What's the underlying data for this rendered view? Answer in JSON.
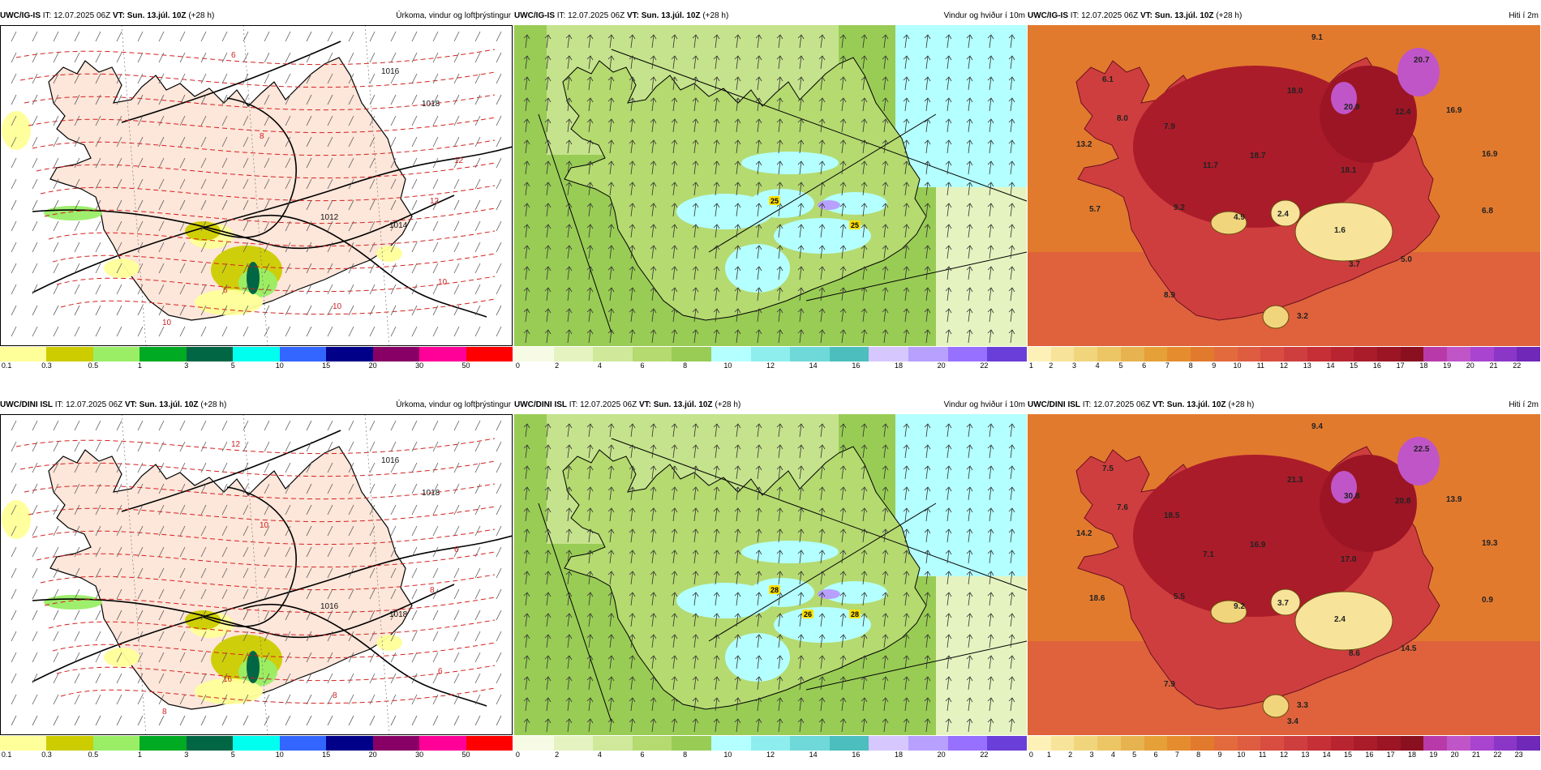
{
  "colors": {
    "land_precip": "#fde6da",
    "precip_colors": [
      "#ffff99",
      "#cccc00",
      "#99ee66",
      "#00aa22",
      "#006644",
      "#00ffee",
      "#3366ff",
      "#000088",
      "#880066",
      "#ff0099",
      "#ff0000"
    ],
    "wind_colors": [
      "#f7fbe6",
      "#e5f3c0",
      "#cfe89a",
      "#b5da70",
      "#99cc55",
      "#b4ffff",
      "#8eeeee",
      "#6fd8d8",
      "#4cbebe",
      "#d6c8ff",
      "#b8a0ff",
      "#9870ff",
      "#6a3ed8"
    ],
    "temp_colors": [
      "#fdf1b8",
      "#f7e49a",
      "#f1d57d",
      "#ecc564",
      "#e7b350",
      "#e6a038",
      "#e58d2e",
      "#e27a2e",
      "#e36a3c",
      "#de5c40",
      "#d84d40",
      "#cf3e3e",
      "#c52f35",
      "#b82530",
      "#aa1c2a",
      "#9c1525",
      "#8a1020",
      "#b83aa8",
      "#c055c8",
      "#a844d0",
      "#8c36c8",
      "#7028b8"
    ]
  },
  "legends": {
    "precip_ticks": [
      "0.1",
      "0.3",
      "0.5",
      "1",
      "3",
      "5",
      "10",
      "15",
      "20",
      "30",
      "50"
    ],
    "wind_ticks": [
      "0",
      "2",
      "4",
      "6",
      "8",
      "10",
      "12",
      "14",
      "16",
      "18",
      "20",
      "22"
    ],
    "temp_ticks_top": [
      "1",
      "2",
      "3",
      "4",
      "5",
      "6",
      "7",
      "8",
      "9",
      "10",
      "11",
      "12",
      "13",
      "14",
      "15",
      "16",
      "17",
      "18",
      "19",
      "20",
      "21",
      "22"
    ],
    "temp_ticks_bottom": [
      "0",
      "1",
      "2",
      "3",
      "4",
      "5",
      "6",
      "7",
      "8",
      "9",
      "10",
      "11",
      "12",
      "13",
      "14",
      "15",
      "16",
      "17",
      "18",
      "19",
      "20",
      "21",
      "22",
      "23"
    ]
  },
  "panels": [
    {
      "model": "UWC/IG-IS",
      "it_label": "IT:",
      "it": "12.07.2025 06Z",
      "vt_label": "VT: Sun. 13.júl. 10Z",
      "lead": "(+28 h)",
      "title": "Úrkoma, vindur og loftþrýstingur",
      "kind": "precip",
      "isobar_labels": [
        "1012",
        "1014",
        "1016",
        "1018",
        "12",
        "10",
        "8",
        "6",
        "10",
        "12",
        "6",
        "10"
      ]
    },
    {
      "model": "UWC/IG-IS",
      "it_label": "IT:",
      "it": "12.07.2025 06Z",
      "vt_label": "VT: Sun. 13.júl. 10Z",
      "lead": "(+28 h)",
      "title": "Vindur og hviður í 10m",
      "kind": "wind",
      "gust_markers": [
        "25",
        "25"
      ]
    },
    {
      "model": "UWC/IG-IS",
      "it_label": "IT:",
      "it": "12.07.2025 06Z",
      "vt_label": "VT: Sun. 13.júl. 10Z",
      "lead": "(+28 h)",
      "title": "Hiti í 2m",
      "kind": "temp",
      "values": [
        "9.1",
        "6.1",
        "20.7",
        "8.0",
        "7.9",
        "18.0",
        "20.9",
        "12.4",
        "16.9",
        "13.2",
        "18.7",
        "16.9",
        "11.7",
        "18.1",
        "5.7",
        "9.2",
        "4.9",
        "2.4",
        "1.6",
        "6.8",
        "8.9",
        "3.7",
        "5.0",
        "3.2"
      ]
    },
    {
      "model": "UWC/DINI ISL",
      "it_label": "IT:",
      "it": "12.07.2025 06Z",
      "vt_label": "VT: Sun. 13.júl. 10Z",
      "lead": "(+28 h)",
      "title": "Úrkoma, vindur og loftþrýstingur",
      "kind": "precip",
      "isobar_labels": [
        "1016",
        "1018",
        "1016",
        "1018",
        "8",
        "6",
        "10",
        "12",
        "8",
        "6",
        "16",
        "8"
      ]
    },
    {
      "model": "UWC/DINI ISL",
      "it_label": "IT:",
      "it": "12.07.2025 06Z",
      "vt_label": "VT: Sun. 13.júl. 10Z",
      "lead": "(+28 h)",
      "title": "Vindur og hviður í 10m",
      "kind": "wind",
      "gust_markers": [
        "28",
        "28",
        "26"
      ]
    },
    {
      "model": "UWC/DINI ISL",
      "it_label": "IT:",
      "it": "12.07.2025 06Z",
      "vt_label": "VT: Sun. 13.júl. 10Z",
      "lead": "(+28 h)",
      "title": "Hiti í 2m",
      "kind": "temp",
      "values": [
        "9.4",
        "7.5",
        "22.5",
        "7.6",
        "18.5",
        "21.3",
        "30.8",
        "20.8",
        "13.9",
        "14.2",
        "16.9",
        "19.3",
        "7.1",
        "17.0",
        "18.6",
        "5.5",
        "9.2",
        "3.7",
        "2.4",
        "0.9",
        "7.9",
        "8.6",
        "14.5",
        "3.3",
        "3.4"
      ]
    }
  ]
}
